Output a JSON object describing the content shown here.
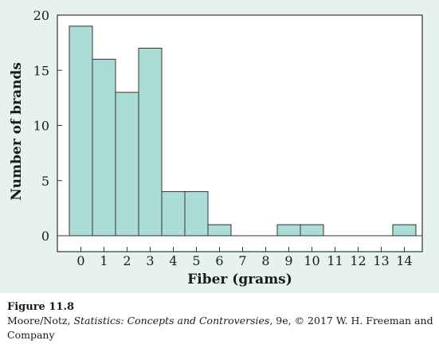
{
  "chart_data": {
    "type": "bar",
    "categories": [
      "0",
      "1",
      "2",
      "3",
      "4",
      "5",
      "6",
      "7",
      "8",
      "9",
      "10",
      "11",
      "12",
      "13",
      "14"
    ],
    "values": [
      19,
      16,
      13,
      17,
      4,
      4,
      1,
      0,
      0,
      1,
      1,
      0,
      0,
      0,
      1
    ],
    "title": "",
    "xlabel": "Fiber (grams)",
    "ylabel": "Number of brands",
    "ylim": [
      0,
      20
    ],
    "yticks": [
      0,
      5,
      10,
      15,
      20
    ],
    "grid": false,
    "colors": {
      "bar_fill": "#acdcd6",
      "bar_stroke": "#333333",
      "panel": "#e6f2f0"
    }
  },
  "caption": {
    "figure_label": "Figure 11.8",
    "credit_prefix": "Moore/Notz, ",
    "credit_title": "Statistics: Concepts and Controversies",
    "credit_suffix": ", 9e, © 2017 W. H. Freeman and Company"
  }
}
